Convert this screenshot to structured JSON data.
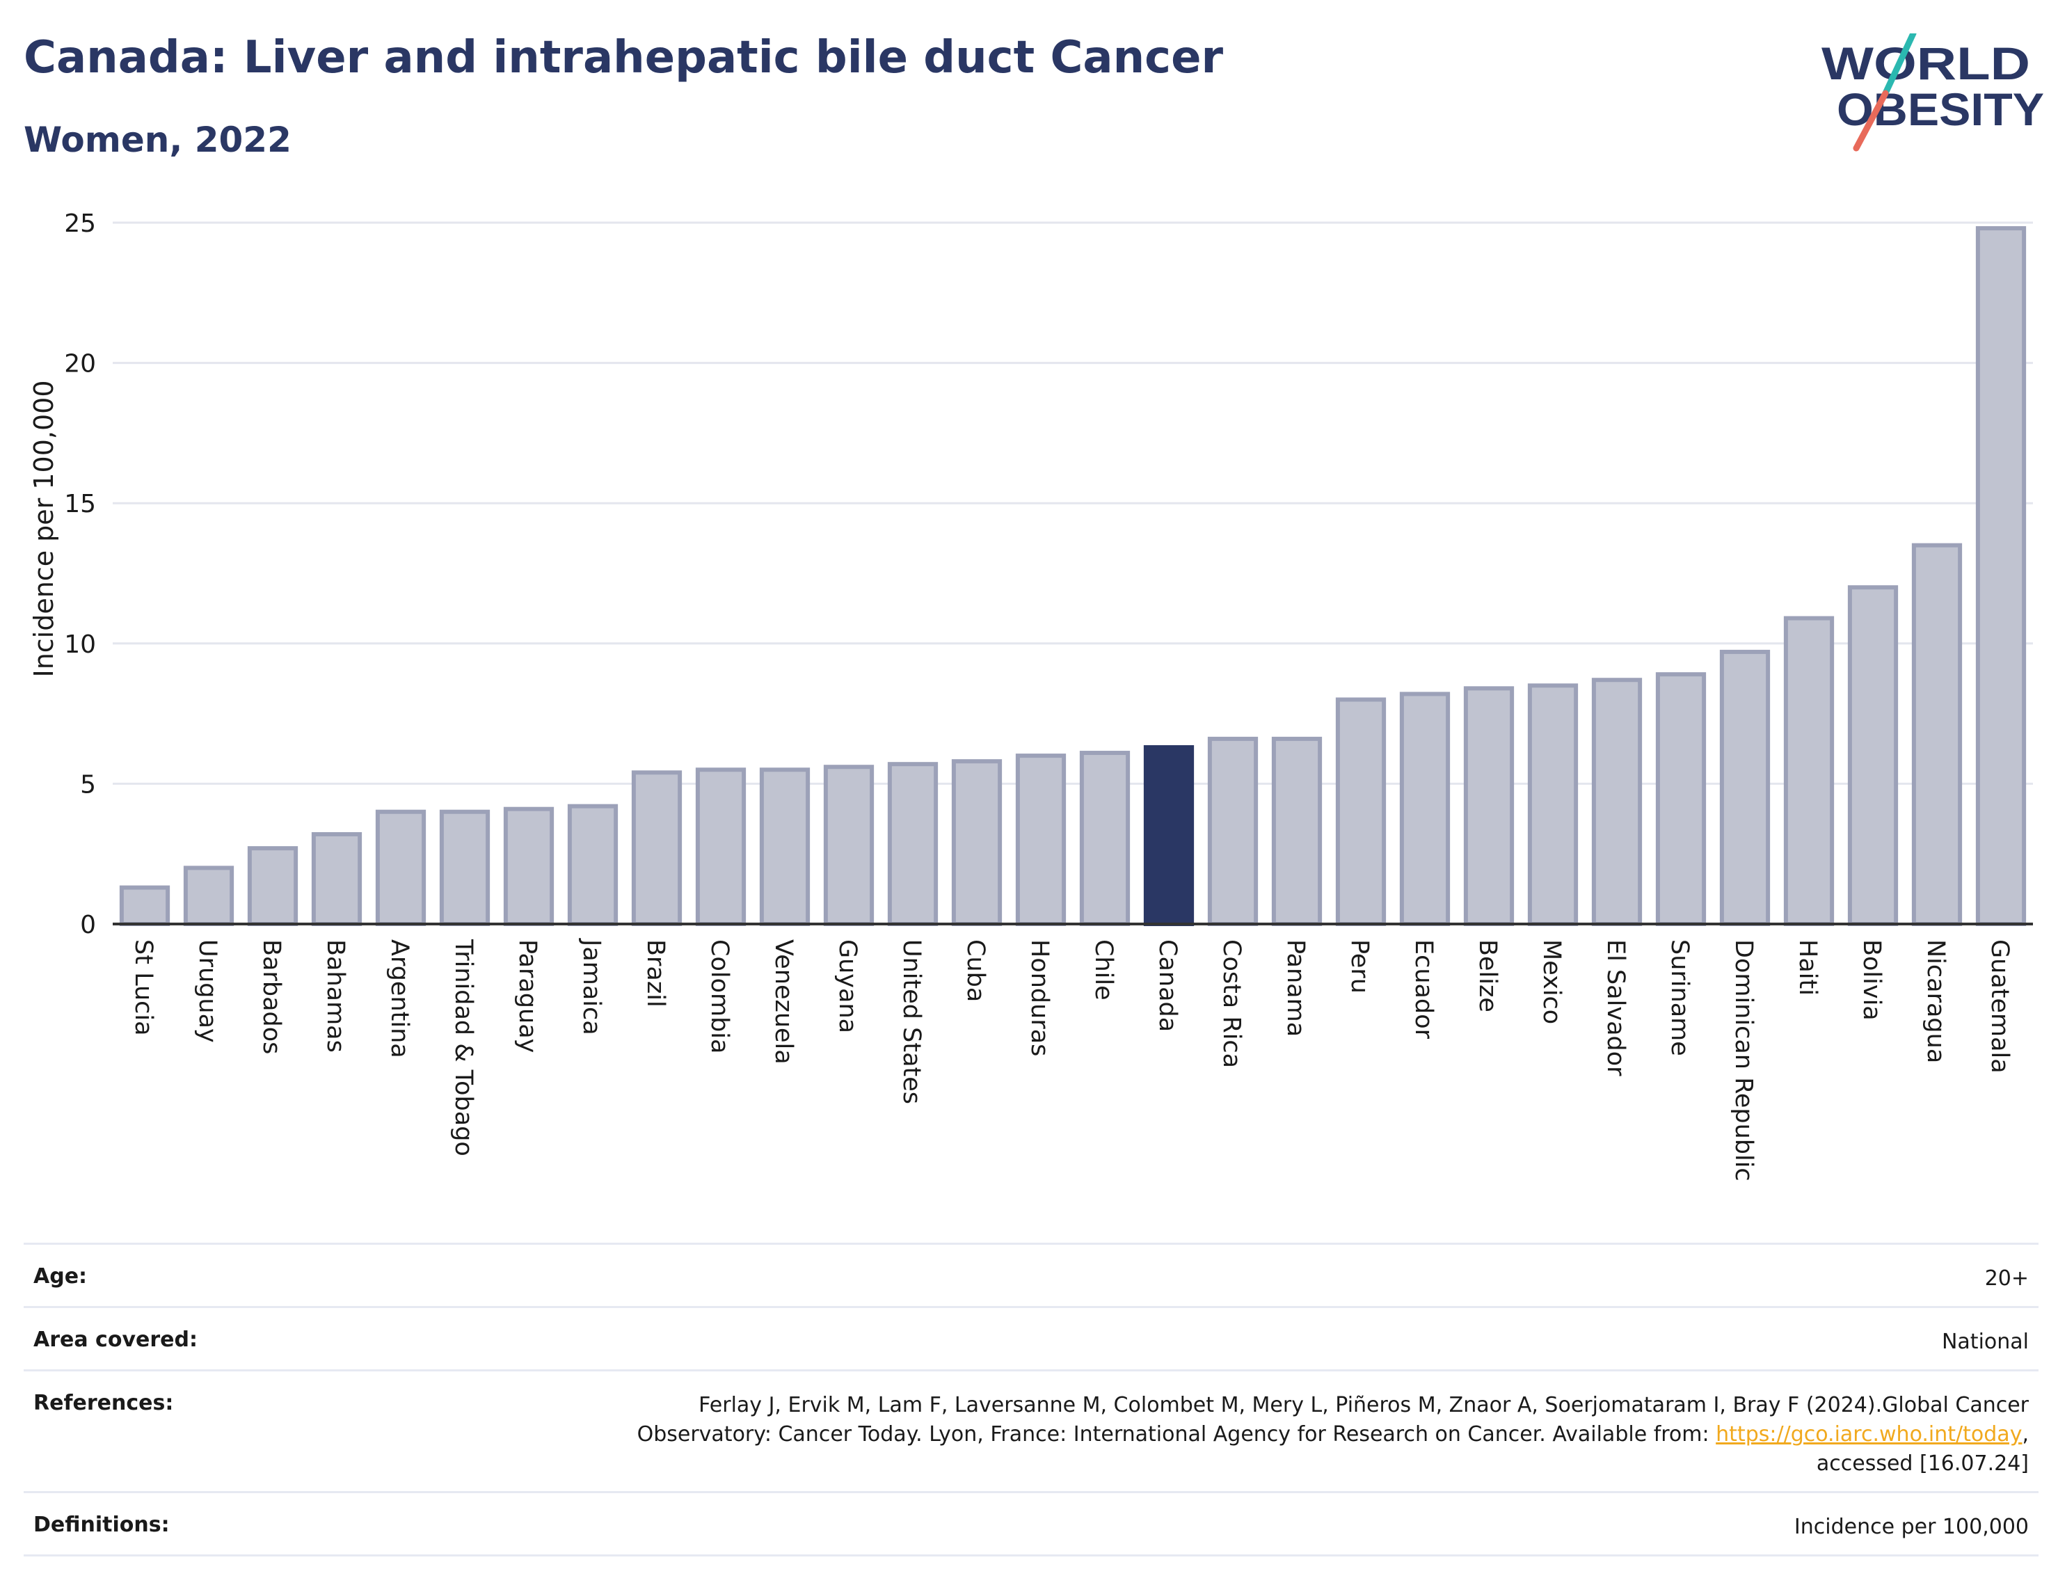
{
  "header": {
    "title": "Canada: Liver and intrahepatic bile duct Cancer",
    "subtitle": "Women, 2022"
  },
  "logo": {
    "line1": "WORLD",
    "line2": "OBESITY"
  },
  "chart_data": {
    "type": "bar",
    "ylabel": "Incidence per 100,000",
    "xlabel": "",
    "ylim": [
      0,
      25
    ],
    "yticks": [
      0,
      5,
      10,
      15,
      20,
      25
    ],
    "grid": true,
    "highlight": "Canada",
    "colors": {
      "bar": "#c0c3d0",
      "bar_border": "#9ca1b8",
      "highlight": "#2a3764",
      "grid": "#e4e6ee",
      "axis": "#333333"
    },
    "categories": [
      "St Lucia",
      "Uruguay",
      "Barbados",
      "Bahamas",
      "Argentina",
      "Trinidad & Tobago",
      "Paraguay",
      "Jamaica",
      "Brazil",
      "Colombia",
      "Venezuela",
      "Guyana",
      "United States",
      "Cuba",
      "Honduras",
      "Chile",
      "Canada",
      "Costa Rica",
      "Panama",
      "Peru",
      "Ecuador",
      "Belize",
      "Mexico",
      "El Salvador",
      "Suriname",
      "Dominican Republic",
      "Haiti",
      "Bolivia",
      "Nicaragua",
      "Guatemala"
    ],
    "values": [
      1.3,
      2.0,
      2.7,
      3.2,
      4.0,
      4.0,
      4.1,
      4.2,
      5.4,
      5.5,
      5.5,
      5.6,
      5.7,
      5.8,
      6.0,
      6.1,
      6.3,
      6.6,
      6.6,
      8.0,
      8.2,
      8.4,
      8.5,
      8.7,
      8.9,
      9.7,
      10.9,
      12.0,
      13.5,
      24.8
    ]
  },
  "meta": {
    "age_label": "Age:",
    "age_value": "20+",
    "area_label": "Area covered:",
    "area_value": "National",
    "references_label": "References:",
    "references_line1": "Ferlay J, Ervik M, Lam F, Laversanne M, Colombet M, Mery L, Piñeros M, Znaor A, Soerjomataram I, Bray F (2024).Global Cancer",
    "references_line2": "Observatory: Cancer Today. Lyon, France: International Agency for Research on Cancer. Available from:",
    "references_link": "https://gco.iarc.who.int/today",
    "references_line3": "accessed [16.07.24]",
    "definitions_label": "Definitions:",
    "definitions_value": "Incidence per 100,000"
  }
}
